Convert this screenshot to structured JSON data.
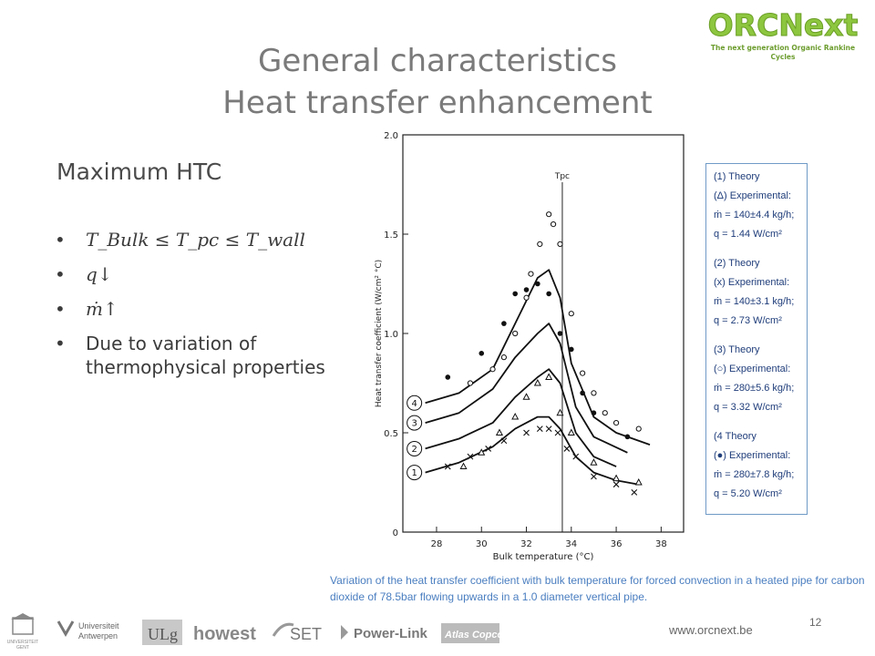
{
  "title": {
    "line1": "General characteristics",
    "line2": "Heat transfer enhancement"
  },
  "logo": {
    "name": "ORCNext",
    "tagline": "The next generation Organic Rankine Cycles"
  },
  "section": {
    "heading": "Maximum HTC"
  },
  "bullets": {
    "b1": "Tₑᵤₗₖ ≤ Tₚ꜀ ≤ Tᵥₐₗₗ",
    "b1_text": "T_Bulk ≤ T_pc ≤ T_wall",
    "b2": "q↓",
    "b3": "ṁ↑",
    "b4": "Due to variation of thermophysical properties"
  },
  "chart_data": {
    "type": "line",
    "xlabel": "Bulk temperature (°C)",
    "ylabel": "Heat transfer coefficient (W/cm² °C)",
    "xticks": [
      "28",
      "30",
      "32",
      "34",
      "36",
      "38"
    ],
    "yticks": [
      "0",
      "0.5",
      "1.0",
      "1.5",
      "2.0"
    ],
    "xlim": [
      26.5,
      39
    ],
    "ylim": [
      0,
      2.0
    ],
    "annotation": "Tpc",
    "pc_temperature": 33.6,
    "series": [
      {
        "name": "1",
        "x": [
          27.5,
          29,
          30.5,
          31.5,
          32.5,
          33,
          33.5,
          34.2,
          35,
          36,
          37
        ],
        "y": [
          0.3,
          0.35,
          0.43,
          0.52,
          0.58,
          0.58,
          0.52,
          0.38,
          0.3,
          0.26,
          0.24
        ]
      },
      {
        "name": "2",
        "x": [
          27.5,
          29,
          30.5,
          31.5,
          32.5,
          33,
          33.5,
          34.2,
          35,
          36
        ],
        "y": [
          0.42,
          0.47,
          0.55,
          0.68,
          0.78,
          0.82,
          0.75,
          0.5,
          0.38,
          0.33
        ]
      },
      {
        "name": "3",
        "x": [
          27.5,
          29,
          30.5,
          31.5,
          32.5,
          33,
          33.5,
          34.2,
          35,
          36.5
        ],
        "y": [
          0.55,
          0.6,
          0.72,
          0.88,
          1.0,
          1.05,
          0.95,
          0.63,
          0.48,
          0.4
        ]
      },
      {
        "name": "4",
        "x": [
          27.5,
          29,
          30.5,
          31.5,
          32.5,
          33,
          33.5,
          34,
          35,
          36,
          37.5
        ],
        "y": [
          0.65,
          0.7,
          0.82,
          1.05,
          1.28,
          1.32,
          1.18,
          0.85,
          0.58,
          0.5,
          0.44
        ]
      }
    ],
    "markers": {
      "open_circle": [
        [
          29.5,
          0.75
        ],
        [
          30.5,
          0.82
        ],
        [
          31,
          0.88
        ],
        [
          31.5,
          1.0
        ],
        [
          32,
          1.18
        ],
        [
          32.2,
          1.3
        ],
        [
          32.6,
          1.45
        ],
        [
          33,
          1.6
        ],
        [
          33.2,
          1.55
        ],
        [
          33.5,
          1.45
        ],
        [
          34,
          1.1
        ],
        [
          34.5,
          0.8
        ],
        [
          35,
          0.7
        ],
        [
          35.5,
          0.6
        ],
        [
          36,
          0.55
        ],
        [
          37,
          0.52
        ]
      ],
      "filled_circle": [
        [
          28.5,
          0.78
        ],
        [
          30,
          0.9
        ],
        [
          31,
          1.05
        ],
        [
          31.5,
          1.2
        ],
        [
          32,
          1.22
        ],
        [
          32.5,
          1.25
        ],
        [
          33,
          1.2
        ],
        [
          33.5,
          1.0
        ],
        [
          34,
          0.92
        ],
        [
          34.5,
          0.7
        ],
        [
          35,
          0.6
        ],
        [
          36.5,
          0.48
        ]
      ],
      "triangle": [
        [
          29.2,
          0.33
        ],
        [
          30,
          0.4
        ],
        [
          30.8,
          0.5
        ],
        [
          31.5,
          0.58
        ],
        [
          32,
          0.68
        ],
        [
          32.5,
          0.75
        ],
        [
          33,
          0.78
        ],
        [
          33.5,
          0.6
        ],
        [
          34,
          0.5
        ],
        [
          35,
          0.35
        ],
        [
          36,
          0.27
        ],
        [
          37,
          0.25
        ]
      ],
      "cross": [
        [
          28.5,
          0.33
        ],
        [
          29.5,
          0.38
        ],
        [
          30.3,
          0.42
        ],
        [
          31,
          0.46
        ],
        [
          32,
          0.5
        ],
        [
          32.6,
          0.52
        ],
        [
          33,
          0.52
        ],
        [
          33.4,
          0.5
        ],
        [
          33.8,
          0.42
        ],
        [
          34.2,
          0.38
        ],
        [
          35,
          0.28
        ],
        [
          36,
          0.24
        ],
        [
          36.8,
          0.2
        ]
      ]
    }
  },
  "legend": {
    "g1": {
      "l1": "(1) Theory",
      "l2": "(Δ) Experimental:",
      "l3": "ṁ = 140±4.4 kg/h;",
      "l4": "q = 1.44 W/cm²"
    },
    "g2": {
      "l1": "(2) Theory",
      "l2": "(x) Experimental:",
      "l3": "ṁ = 140±3.1 kg/h;",
      "l4": "q = 2.73 W/cm²"
    },
    "g3": {
      "l1": "(3) Theory",
      "l2": "(○) Experimental:",
      "l3": "ṁ = 280±5.6 kg/h;",
      "l4": "q = 3.32 W/cm²"
    },
    "g4": {
      "l1": "(4 Theory",
      "l2": "(●) Experimental:",
      "l3": "ṁ = 280±7.8 kg/h;",
      "l4": "q = 5.20 W/cm²"
    }
  },
  "caption": "Variation of the heat transfer coefficient with bulk temperature for forced convection in a heated pipe for carbon dioxide of 78.5bar flowing upwards in a 1.0 diameter vertical pipe.",
  "footer": {
    "logos": [
      "UNIVERSITEIT GENT",
      "Universiteit Antwerpen",
      "ULg",
      "howest",
      "SET",
      "Power-Link",
      "Atlas Copco"
    ],
    "website": "www.orcnext.be",
    "page_number": "12"
  },
  "colors": {
    "title": "#7a7a7a",
    "caption": "#4a7ec0",
    "legend_border": "#6f9ac6",
    "logo_green": "#8dc63f"
  }
}
